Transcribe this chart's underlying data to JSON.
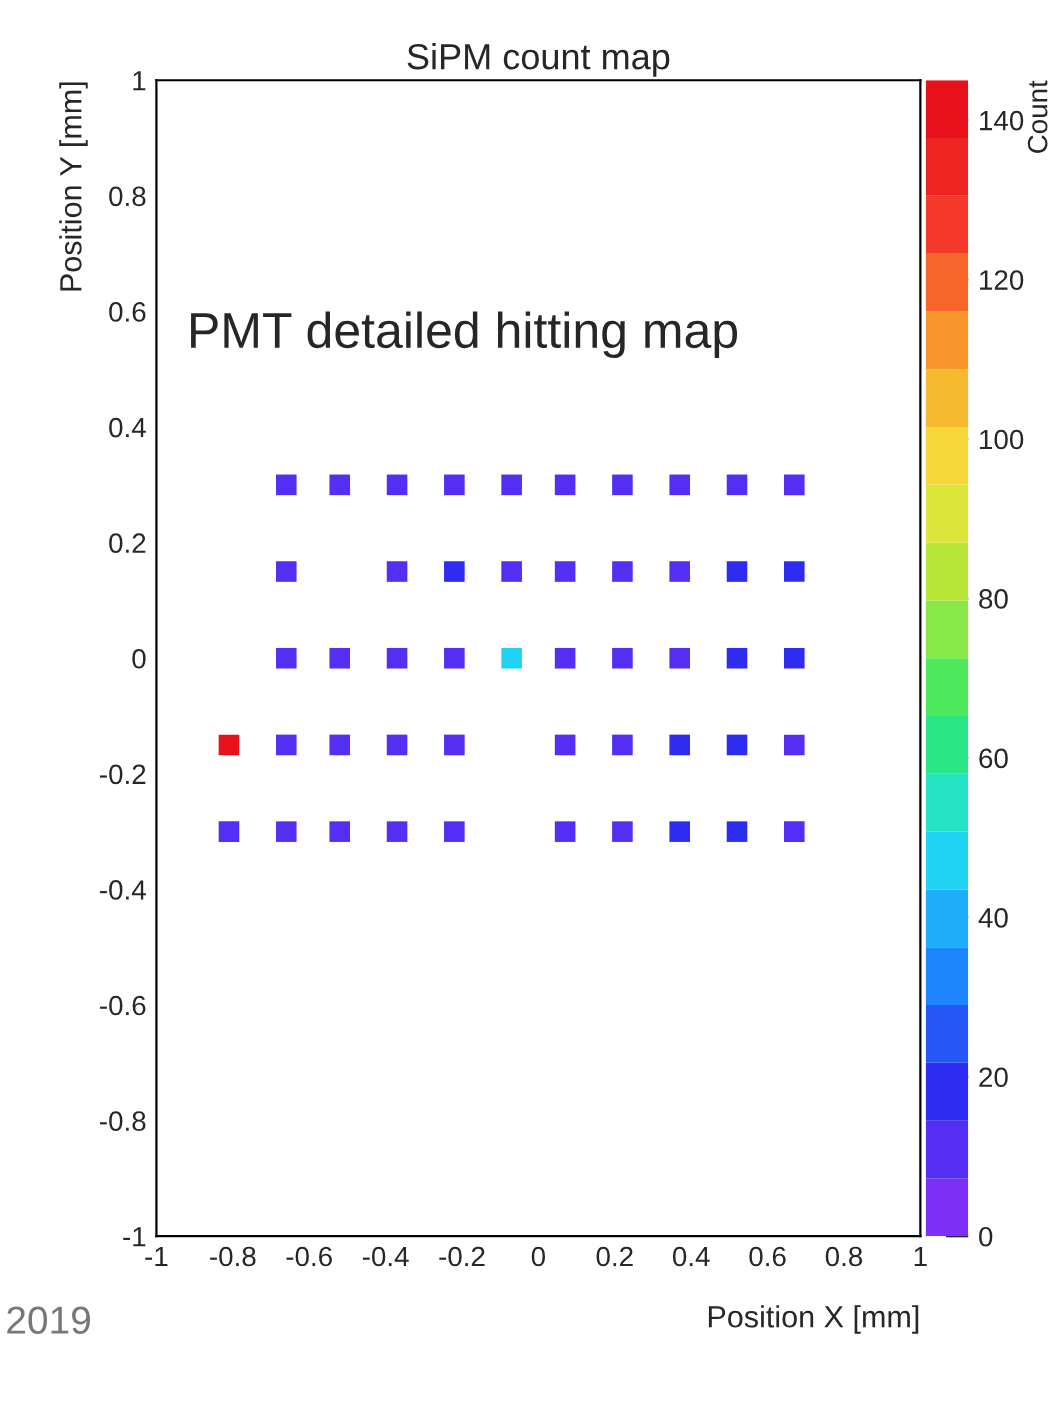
{
  "chart_data": {
    "type": "scatter",
    "title": "SiPM count map",
    "xlabel": "Position X [mm]",
    "ylabel": "Position Y [mm]",
    "clabel": "Count",
    "annotations": [
      "PMT detailed hitting map",
      "2019"
    ],
    "marker": "square",
    "grid": false,
    "xlim": [
      -1,
      1
    ],
    "ylim": [
      -1,
      1
    ],
    "xticks": [
      -1,
      -0.8,
      -0.6,
      -0.4,
      -0.2,
      0,
      0.2,
      0.4,
      0.6,
      0.8,
      1
    ],
    "yticks": [
      -1,
      -0.8,
      -0.6,
      -0.4,
      -0.2,
      0,
      0.2,
      0.4,
      0.6,
      0.8,
      1
    ],
    "clim": [
      0,
      145
    ],
    "cticks": [
      0,
      20,
      40,
      60,
      80,
      100,
      120,
      140
    ],
    "x": [
      -0.66,
      -0.52,
      -0.37,
      -0.22,
      -0.07,
      0.07,
      0.22,
      0.37,
      0.52,
      0.67,
      -0.66,
      -0.37,
      -0.22,
      -0.07,
      0.07,
      0.22,
      0.37,
      0.52,
      0.67,
      -0.66,
      -0.52,
      -0.37,
      -0.22,
      -0.07,
      0.07,
      0.22,
      0.37,
      0.52,
      0.67,
      -0.81,
      -0.66,
      -0.52,
      -0.37,
      -0.22,
      0.07,
      0.22,
      0.37,
      0.52,
      0.67,
      -0.81,
      -0.66,
      -0.52,
      -0.37,
      -0.22,
      0.07,
      0.22,
      0.37,
      0.52,
      0.67
    ],
    "values": [
      0.3,
      0.3,
      0.3,
      0.3,
      0.3,
      0.3,
      0.3,
      0.3,
      0.3,
      0.3,
      0.15,
      0.15,
      0.15,
      0.15,
      0.15,
      0.15,
      0.15,
      0.15,
      0.15,
      0,
      0,
      0,
      0,
      0,
      0,
      0,
      0,
      0,
      0,
      -0.15,
      -0.15,
      -0.15,
      -0.15,
      -0.15,
      -0.15,
      -0.15,
      -0.15,
      -0.15,
      -0.15,
      -0.3,
      -0.3,
      -0.3,
      -0.3,
      -0.3,
      -0.3,
      -0.3,
      -0.3,
      -0.3,
      -0.3
    ],
    "cvalues": [
      8,
      10,
      12,
      12,
      10,
      10,
      8,
      8,
      8,
      8,
      10,
      12,
      15,
      12,
      10,
      10,
      10,
      20,
      20,
      12,
      12,
      12,
      12,
      50,
      10,
      12,
      12,
      15,
      20,
      140,
      12,
      10,
      12,
      10,
      8,
      10,
      18,
      18,
      12,
      12,
      14,
      10,
      10,
      10,
      8,
      10,
      18,
      15,
      10
    ]
  }
}
